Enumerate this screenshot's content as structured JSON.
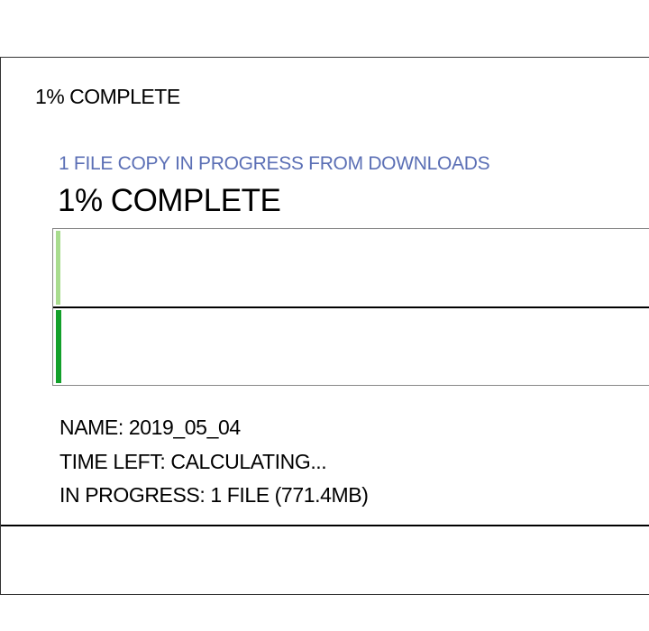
{
  "dialog": {
    "title": "1% COMPLETE",
    "summary": "1 FILE COPY IN PROGRESS FROM DOWNLOADS",
    "percent_label": "1% COMPLETE",
    "progress_percent": 1,
    "colors": {
      "summary": "#5b6fb5",
      "overall_fill": "#a8dc8e",
      "file_fill": "#12a02a"
    },
    "details": {
      "name": "NAME: 2019_05_04",
      "time_left": "TIME LEFT: CALCULATING...",
      "in_progress": "IN PROGRESS: 1 FILE (771.4MB)"
    }
  }
}
